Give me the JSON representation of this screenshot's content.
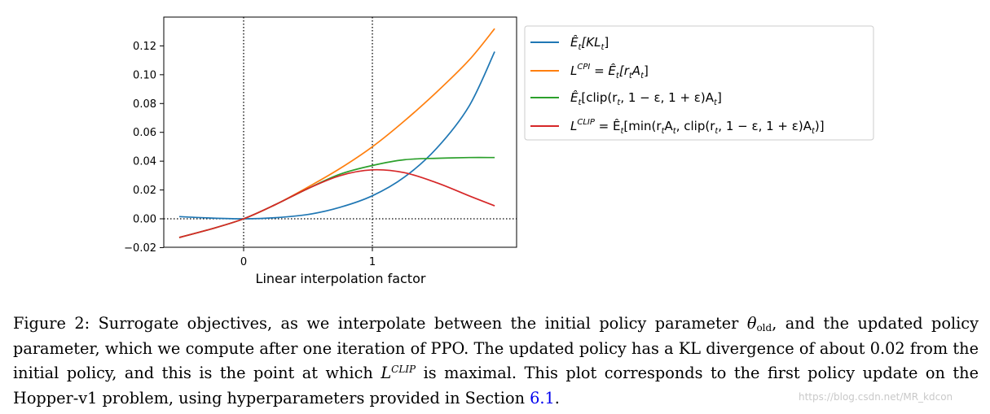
{
  "chart_data": {
    "type": "line",
    "xlabel": "Linear interpolation factor",
    "ylabel": "",
    "xlim": [
      -0.6,
      2.1
    ],
    "ylim": [
      -0.02,
      0.13
    ],
    "xticks": [
      0,
      1
    ],
    "yticks": [
      -0.02,
      0.0,
      0.02,
      0.04,
      0.06,
      0.08,
      0.1,
      0.12
    ],
    "ytick_labels": [
      "−0.02",
      "0.00",
      "0.02",
      "0.04",
      "0.06",
      "0.08",
      "0.10",
      "0.12"
    ],
    "xtick_labels": [
      "0",
      "1"
    ],
    "reference_lines": {
      "vertical": [
        0,
        1
      ],
      "horizontal": [
        0
      ]
    },
    "legend_position": "outside-right-top",
    "grid": false,
    "series": [
      {
        "name": "Ê_t[KL_t]",
        "color": "#1f77b4",
        "x": [
          -0.5,
          -0.25,
          0.0,
          0.25,
          0.5,
          0.75,
          1.0,
          1.25,
          1.5,
          1.75,
          1.95
        ],
        "y": [
          0.0015,
          0.0005,
          0.0,
          0.0008,
          0.003,
          0.008,
          0.016,
          0.029,
          0.049,
          0.078,
          0.116
        ]
      },
      {
        "name": "L^CPI = Ê_t[r_t A_t]",
        "color": "#ff7f0e",
        "x": [
          -0.5,
          -0.25,
          0.0,
          0.25,
          0.5,
          0.75,
          1.0,
          1.25,
          1.5,
          1.75,
          1.95
        ],
        "y": [
          -0.013,
          -0.007,
          0.0,
          0.01,
          0.022,
          0.035,
          0.05,
          0.068,
          0.088,
          0.11,
          0.132
        ]
      },
      {
        "name": "Ê_t[clip(r_t, 1 − ε, 1 + ε)A_t]",
        "color": "#2ca02c",
        "x": [
          -0.5,
          -0.25,
          0.0,
          0.25,
          0.5,
          0.75,
          1.0,
          1.25,
          1.5,
          1.75,
          1.95
        ],
        "y": [
          -0.013,
          -0.007,
          0.0,
          0.01,
          0.021,
          0.031,
          0.037,
          0.041,
          0.042,
          0.0425,
          0.0425
        ]
      },
      {
        "name": "L^CLIP = Ê_t[min(r_t A_t, clip(r_t, 1 − ε, 1 + ε)A_t)]",
        "color": "#d62728",
        "x": [
          -0.5,
          -0.25,
          0.0,
          0.25,
          0.5,
          0.75,
          1.0,
          1.25,
          1.5,
          1.75,
          1.95
        ],
        "y": [
          -0.013,
          -0.007,
          0.0,
          0.01,
          0.021,
          0.03,
          0.034,
          0.032,
          0.025,
          0.016,
          0.009
        ]
      }
    ]
  },
  "legend": {
    "kl": {
      "pre": "Ê",
      "sub1": "t",
      "mid": "[KL",
      "sub2": "t",
      "post": "]"
    },
    "cpi": {
      "L": "L",
      "sup": "CPI",
      "eq": " = Ê",
      "sub1": "t",
      "b1": "[r",
      "sub2": "t",
      "b2": "A",
      "sub3": "t",
      "b3": "]"
    },
    "clip": {
      "pre": "Ê",
      "sub1": "t",
      "b1": "[clip(r",
      "sub2": "t",
      "b2": ", 1 − ε, 1 + ε)A",
      "sub3": "t",
      "b3": "]"
    },
    "lclip": {
      "L": "L",
      "sup": "CLIP",
      "eq": " = Ê",
      "sub1": "t",
      "b1": "[min(r",
      "sub2": "t",
      "b2": "A",
      "sub3": "t",
      "b3": ", clip(r",
      "sub4": "t",
      "b4": ", 1 − ε, 1 + ε)A",
      "sub5": "t",
      "b5": ")]"
    }
  },
  "caption": {
    "p1": "Figure 2: Surrogate objectives, as we interpolate between the initial policy parameter ",
    "theta": "θ",
    "theta_sub": "old",
    "p2": ", and the updated policy parameter, which we compute after one iteration of PPO. The updated policy has a KL divergence of about 0.02 from the initial policy, and this is the point at which ",
    "L": "L",
    "L_sup": "CLIP",
    "p3": " is maximal. This plot corresponds to the first policy update on the Hopper-v1 problem, using hyperparameters provided in Section ",
    "section_ref": "6.1",
    "p4": "."
  },
  "watermark": "https://blog.csdn.net/MR_kdcon"
}
